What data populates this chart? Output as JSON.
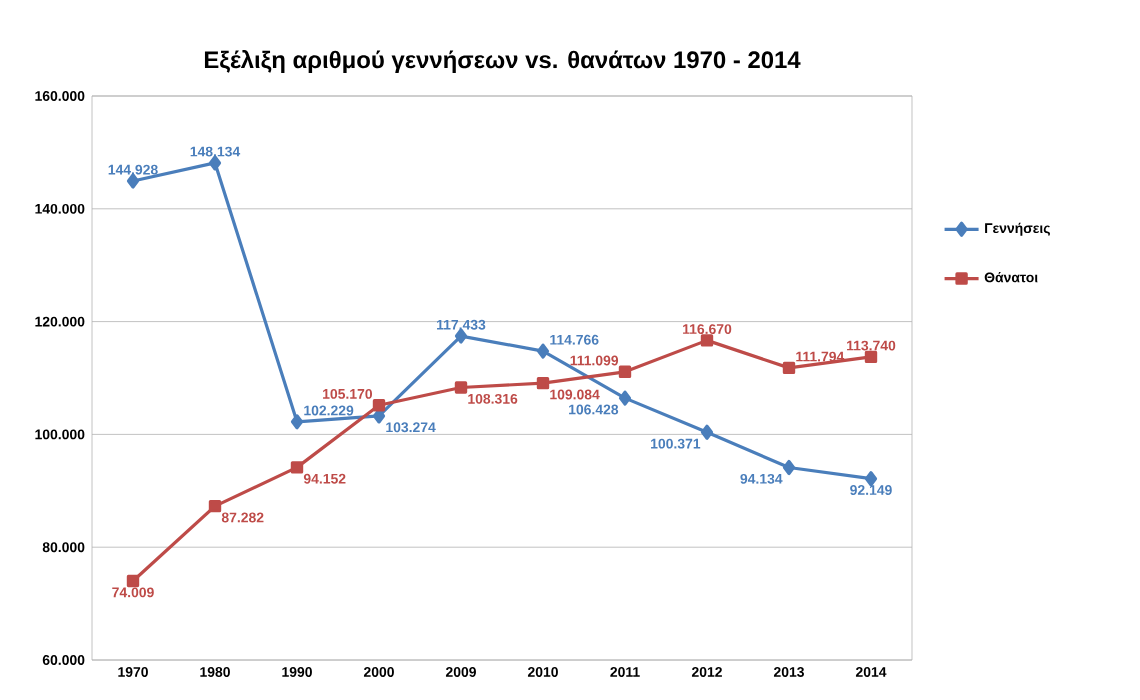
{
  "chart_data": {
    "type": "line",
    "title": "Εξέλιξη αριθμού γεννήσεων vs. θανάτων 1970 - 2014",
    "categories": [
      "1970",
      "1980",
      "1990",
      "2000",
      "2009",
      "2010",
      "2011",
      "2012",
      "2013",
      "2014"
    ],
    "series": [
      {
        "name": "Γεννήσεις",
        "color": "#4a7ebb",
        "marker": "diamond",
        "values": [
          144928,
          148134,
          102229,
          103274,
          117433,
          114766,
          106428,
          100371,
          94134,
          92149
        ],
        "value_labels": [
          "144.928",
          "148.134",
          "102.229",
          "103.274",
          "117.433",
          "114.766",
          "106.428",
          "100.371",
          "94.134",
          "92.149"
        ]
      },
      {
        "name": "Θάνατοι",
        "color": "#be4b48",
        "marker": "square",
        "values": [
          74009,
          87282,
          94152,
          105170,
          108316,
          109084,
          111099,
          116670,
          111794,
          113740
        ],
        "value_labels": [
          "74.009",
          "87.282",
          "94.152",
          "105.170",
          "108.316",
          "109.084",
          "111.099",
          "116.670",
          "111.794",
          "113.740"
        ]
      }
    ],
    "ylim": [
      60000,
      160000
    ],
    "yticks": [
      {
        "value": 60000,
        "label": "60.000"
      },
      {
        "value": 80000,
        "label": "80.000"
      },
      {
        "value": 100000,
        "label": "100.000"
      },
      {
        "value": 120000,
        "label": "120.000"
      },
      {
        "value": 140000,
        "label": "140.000"
      },
      {
        "value": 160000,
        "label": "160.000"
      }
    ],
    "grid": "y",
    "legend": "right",
    "line_style": "solid"
  }
}
